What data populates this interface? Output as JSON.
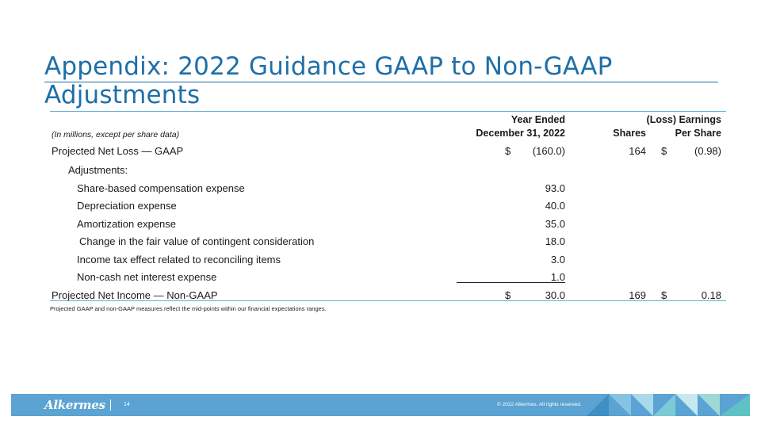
{
  "title": "Appendix: 2022 Guidance GAAP to Non-GAAP Adjustments",
  "table": {
    "header": {
      "units_note": "(In millions, except per share data)",
      "col_year_line1": "Year Ended",
      "col_year_line2": "December 31, 2022",
      "col_shares": "Shares",
      "col_eps_line1": "(Loss) Earnings",
      "col_eps_line2": "Per Share"
    },
    "rows": [
      {
        "label": "Projected Net Loss — GAAP",
        "dollar1": "$",
        "amount": "(160.0)",
        "shares": "164",
        "dollar2": "$",
        "eps": "(0.98)"
      },
      {
        "label": "Adjustments:",
        "dollar1": "",
        "amount": "",
        "shares": "",
        "dollar2": "",
        "eps": ""
      },
      {
        "label": "Share-based compensation expense",
        "dollar1": "",
        "amount": "93.0",
        "shares": "",
        "dollar2": "",
        "eps": ""
      },
      {
        "label": "Depreciation expense",
        "dollar1": "",
        "amount": "40.0",
        "shares": "",
        "dollar2": "",
        "eps": ""
      },
      {
        "label": "Amortization expense",
        "dollar1": "",
        "amount": "35.0",
        "shares": "",
        "dollar2": "",
        "eps": ""
      },
      {
        "label": "Change in the fair value of contingent consideration",
        "dollar1": "",
        "amount": "18.0",
        "shares": "",
        "dollar2": "",
        "eps": ""
      },
      {
        "label": "Income tax effect related to reconciling items",
        "dollar1": "",
        "amount": "3.0",
        "shares": "",
        "dollar2": "",
        "eps": ""
      },
      {
        "label": "Non-cash net interest expense",
        "dollar1": "",
        "amount": "1.0",
        "shares": "",
        "dollar2": "",
        "eps": ""
      },
      {
        "label": "Projected Net Income — Non-GAAP",
        "dollar1": "$",
        "amount": "30.0",
        "shares": "169",
        "dollar2": "$",
        "eps": "0.18"
      }
    ]
  },
  "footnote": "Projected GAAP and non-GAAP measures reflect the mid-points within our financial expectations ranges.",
  "footer": {
    "logo_text": "Alkermes",
    "page_number": "14",
    "copyright": "© 2022 Alkermes. All rights reserved."
  },
  "colors": {
    "title_blue": "#1e6fa8",
    "rule_blue": "#5fb1d9",
    "footer_blue": "#5aa3d2"
  }
}
